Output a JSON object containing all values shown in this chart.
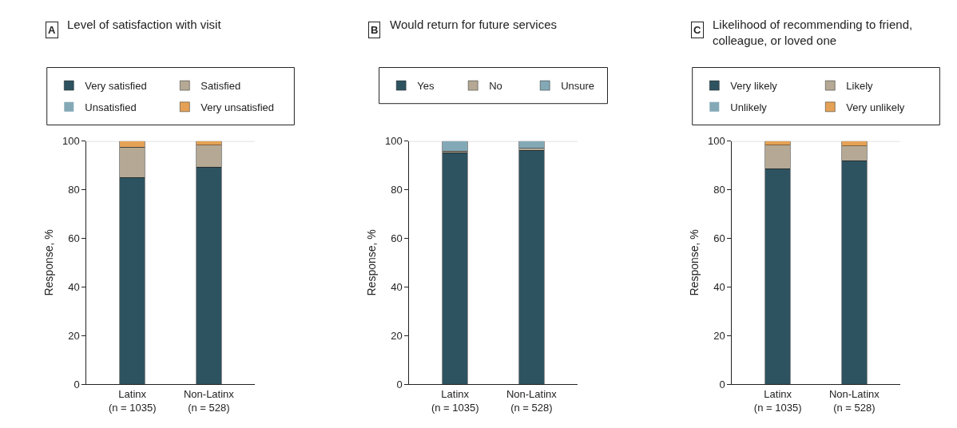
{
  "chart_data": [
    {
      "type": "bar",
      "stacked": true,
      "title": "Level of satisfaction with visit",
      "annotations": [
        "A"
      ],
      "ylabel": "Response, %",
      "categories": [
        "Latinx\n(n = 1035)",
        "Non-Latinx\n(n = 528)"
      ],
      "ylim": [
        0,
        100
      ],
      "yticks": [
        0,
        20,
        40,
        60,
        80,
        100
      ],
      "legend": "top",
      "ref_lines": [
        {
          "axis": "y",
          "value": 100,
          "color": "#d9d9d9"
        }
      ],
      "series": [
        {
          "name": "Very satisfied",
          "color": "#2e5360",
          "values": [
            85,
            89.3
          ]
        },
        {
          "name": "Satisfied",
          "color": "#b5a995",
          "values": [
            12.6,
            9.1
          ]
        },
        {
          "name": "Unsatisfied",
          "color": "#84a9b6",
          "values": [
            0,
            0
          ]
        },
        {
          "name": "Very unsatisfied",
          "color": "#e5a256",
          "values": [
            2.4,
            1.6
          ]
        }
      ]
    },
    {
      "type": "bar",
      "stacked": true,
      "title": "Would return for future services",
      "annotations": [
        "B"
      ],
      "ylabel": "Response, %",
      "categories": [
        "Latinx\n(n = 1035)",
        "Non-Latinx\n(n = 528)"
      ],
      "ylim": [
        0,
        100
      ],
      "yticks": [
        0,
        20,
        40,
        60,
        80,
        100
      ],
      "legend": "top",
      "ref_lines": [
        {
          "axis": "y",
          "value": 100,
          "color": "#d9d9d9"
        }
      ],
      "series": [
        {
          "name": "Yes",
          "color": "#2e5360",
          "values": [
            95.2,
            96.3
          ]
        },
        {
          "name": "No",
          "color": "#b5a995",
          "values": [
            0.7,
            0.7
          ]
        },
        {
          "name": "Unsure",
          "color": "#84a9b6",
          "values": [
            4.1,
            3.0
          ]
        }
      ]
    },
    {
      "type": "bar",
      "stacked": true,
      "title": "Likelihood of recommending to friend,\ncolleague, or loved one",
      "annotations": [
        "C"
      ],
      "ylabel": "Response, %",
      "categories": [
        "Latinx\n(n = 1035)",
        "Non-Latinx\n(n = 528)"
      ],
      "ylim": [
        0,
        100
      ],
      "yticks": [
        0,
        20,
        40,
        60,
        80,
        100
      ],
      "legend": "top",
      "ref_lines": [
        {
          "axis": "y",
          "value": 100,
          "color": "#d9d9d9"
        }
      ],
      "series": [
        {
          "name": "Very likely",
          "color": "#2e5360",
          "values": [
            88.6,
            92.0
          ]
        },
        {
          "name": "Likely",
          "color": "#b5a995",
          "values": [
            9.7,
            6.1
          ]
        },
        {
          "name": "Unlikely",
          "color": "#84a9b6",
          "values": [
            0,
            0
          ]
        },
        {
          "name": "Very unlikely",
          "color": "#e5a256",
          "values": [
            1.7,
            1.9
          ]
        }
      ]
    }
  ]
}
